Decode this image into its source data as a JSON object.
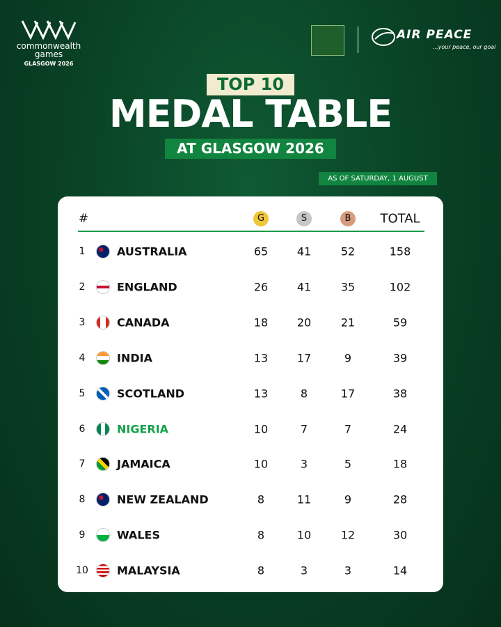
{
  "logo": {
    "brand": "commonwealth games",
    "edition": "GLASGOW 2026"
  },
  "sponsor": {
    "name": "AIR PEACE",
    "tagline": "...your peace, our goal"
  },
  "header": {
    "kicker": "TOP 10",
    "title": "MEDAL TABLE",
    "subtitle": "AT GLASGOW 2026",
    "date": "AS OF SATURDAY, 1 AUGUST"
  },
  "table": {
    "columns": [
      "#",
      "G",
      "S",
      "B",
      "TOTAL"
    ],
    "rows": [
      [
        1,
        "AUSTRALIA",
        65,
        41,
        52,
        158
      ],
      [
        2,
        "ENGLAND",
        26,
        41,
        35,
        102
      ],
      [
        3,
        "CANADA",
        18,
        20,
        21,
        59
      ],
      [
        4,
        "INDIA",
        13,
        17,
        9,
        39
      ],
      [
        5,
        "SCOTLAND",
        13,
        8,
        17,
        38
      ],
      [
        6,
        "NIGERIA",
        10,
        7,
        7,
        24
      ],
      [
        7,
        "JAMAICA",
        10,
        3,
        5,
        18
      ],
      [
        8,
        "NEW ZEALAND",
        8,
        11,
        9,
        28
      ],
      [
        9,
        "WALES",
        8,
        10,
        12,
        30
      ],
      [
        10,
        "MALAYSIA",
        8,
        3,
        3,
        14
      ]
    ]
  }
}
